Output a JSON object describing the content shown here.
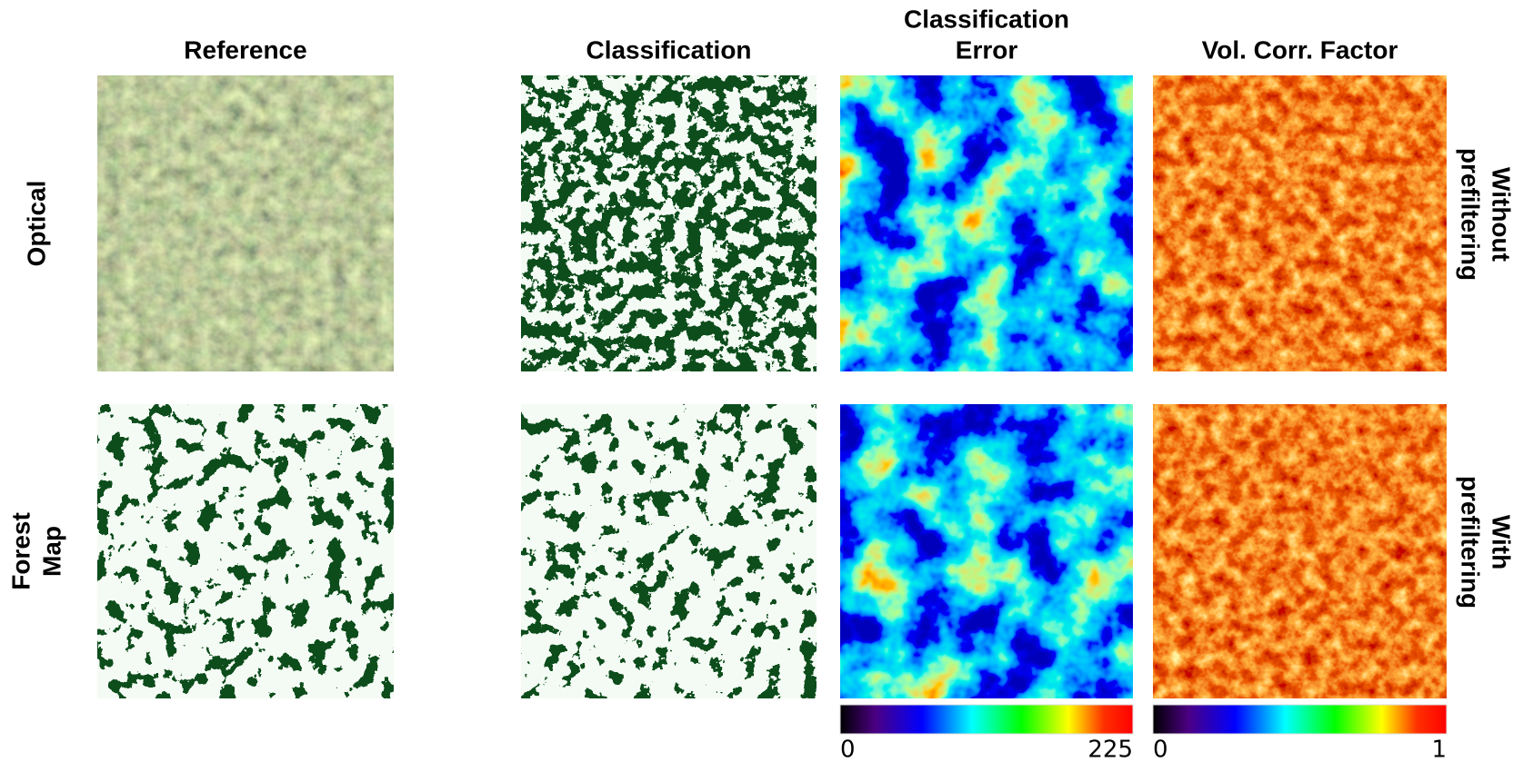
{
  "column_titles": [
    [
      "Reference"
    ],
    [
      "Classification"
    ],
    [
      "Classification",
      "Error"
    ],
    [
      "Vol. Corr. Factor"
    ]
  ],
  "row_labels": [
    [
      "Optical"
    ],
    [
      "Forest",
      "Map"
    ]
  ],
  "side_labels": [
    [
      "Without",
      "prefiltering"
    ],
    [
      "With",
      "prefiltering"
    ]
  ],
  "colorbars": [
    {
      "ticks": [
        0,
        225
      ]
    },
    {
      "ticks": [
        0,
        1
      ]
    }
  ]
}
